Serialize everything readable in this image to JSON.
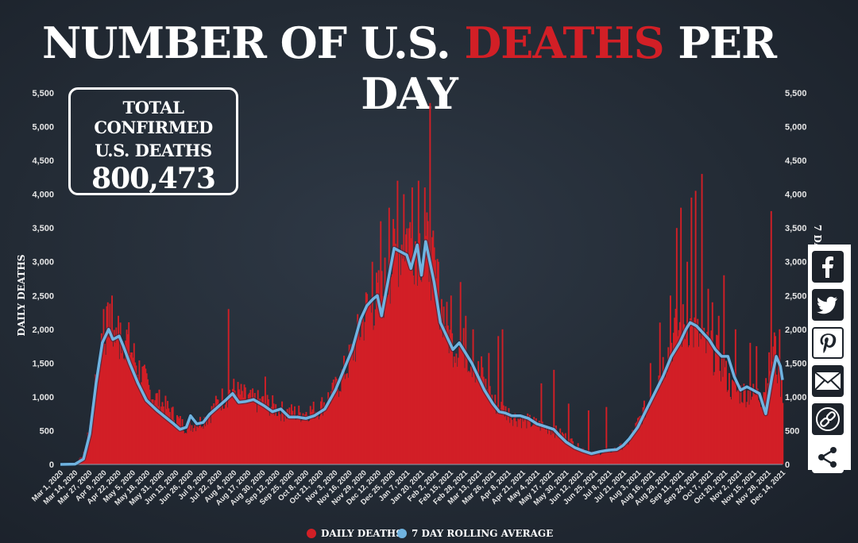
{
  "title": {
    "part1": "NUMBER OF U.S.",
    "highlight": "DEATHS",
    "part2": "PER DAY"
  },
  "total_box": {
    "line1": "TOTAL CONFIRMED",
    "line2": "U.S. DEATHS",
    "value": "800,473"
  },
  "legend": {
    "daily": "DAILY DEATHS",
    "rolling": "7 DAY ROLLING AVERAGE"
  },
  "share_icons": [
    "facebook-icon",
    "twitter-icon",
    "pinterest-icon",
    "email-icon",
    "link-icon",
    "share-icon"
  ],
  "colors": {
    "background": "#232b35",
    "bars": "#d21f26",
    "line": "#6fb3e0",
    "text": "#ffffff"
  },
  "chart_data": {
    "type": "bar",
    "title": "NUMBER OF U.S. DEATHS PER DAY",
    "ylabel": "DAILY DEATHS",
    "y2label": "7 DAY ROLLING AVERAGE",
    "ylim": [
      0,
      5500
    ],
    "yticks": [
      0,
      500,
      1000,
      1500,
      2000,
      2500,
      3000,
      3500,
      4000,
      4500,
      5000,
      5500
    ],
    "ytick_labels": [
      "0",
      "500",
      "1,000",
      "1,500",
      "2,000",
      "2,500",
      "3,000",
      "3,500",
      "4,000",
      "4,500",
      "5,000",
      "5,500"
    ],
    "x_range": [
      "Mar 1, 2020",
      "Dec 14, 2021"
    ],
    "xtick_labels": [
      "Mar 1, 2020",
      "Mar 14, 2020",
      "Mar 27, 2020",
      "Apr 9, 2020",
      "Apr 22, 2020",
      "May 5, 2020",
      "May 18, 2020",
      "May 31, 2020",
      "Jun 13, 2020",
      "Jun 26, 2020",
      "Jul 9, 2020",
      "Jul 22, 2020",
      "Aug 4, 2020",
      "Aug 17, 2020",
      "Aug 30, 2020",
      "Sep 12, 2020",
      "Sep 25, 2020",
      "Oct 8, 2020",
      "Oct 21, 2020",
      "Nov 3, 2020",
      "Nov 16, 2020",
      "Nov 29, 2020",
      "Dec 12, 2020",
      "Dec 25, 2020",
      "Jan 7, 2021",
      "Jan 20, 2021",
      "Feb 2, 2021",
      "Feb 15, 2021",
      "Feb 28, 2021",
      "Mar 13, 2021",
      "Mar 26, 2021",
      "Apr 8, 2021",
      "Apr 21, 2021",
      "May 4, 2021",
      "May 17, 2021",
      "May 30, 2021",
      "Jun 12, 2021",
      "Jun 25, 2021",
      "Jul 8, 2021",
      "Jul 21, 2021",
      "Aug 3, 2021",
      "Aug 16, 2021",
      "Aug 29, 2021",
      "Sep 11, 2021",
      "Sep 24, 2021",
      "Oct 7, 2021",
      "Oct 20, 2021",
      "Nov 2, 2021",
      "Nov 15, 2021",
      "Nov 28, 2021",
      "Dec 14, 2021"
    ],
    "series": [
      {
        "name": "DAILY DEATHS",
        "type": "bar",
        "keypoints": [
          [
            0,
            0
          ],
          [
            14,
            5
          ],
          [
            24,
            200
          ],
          [
            32,
            1000
          ],
          [
            38,
            1700
          ],
          [
            46,
            2100
          ],
          [
            54,
            1800
          ],
          [
            62,
            1900
          ],
          [
            72,
            1500
          ],
          [
            86,
            1050
          ],
          [
            100,
            850
          ],
          [
            118,
            560
          ],
          [
            130,
            600
          ],
          [
            140,
            700
          ],
          [
            152,
            950
          ],
          [
            164,
            1100
          ],
          [
            180,
            950
          ],
          [
            196,
            900
          ],
          [
            212,
            780
          ],
          [
            228,
            750
          ],
          [
            246,
            820
          ],
          [
            262,
            1100
          ],
          [
            276,
            1550
          ],
          [
            292,
            2300
          ],
          [
            306,
            2500
          ],
          [
            318,
            3100
          ],
          [
            330,
            3400
          ],
          [
            340,
            3300
          ],
          [
            352,
            3100
          ],
          [
            362,
            2400
          ],
          [
            372,
            1800
          ],
          [
            386,
            1700
          ],
          [
            400,
            1300
          ],
          [
            414,
            900
          ],
          [
            432,
            700
          ],
          [
            452,
            600
          ],
          [
            466,
            530
          ],
          [
            480,
            420
          ],
          [
            494,
            250
          ],
          [
            510,
            160
          ],
          [
            524,
            200
          ],
          [
            540,
            300
          ],
          [
            558,
            850
          ],
          [
            572,
            1400
          ],
          [
            586,
            1950
          ],
          [
            598,
            2100
          ],
          [
            612,
            1750
          ],
          [
            626,
            1600
          ],
          [
            640,
            1100
          ],
          [
            654,
            1050
          ],
          [
            668,
            1000
          ],
          [
            680,
            1700
          ],
          [
            684,
            1300
          ],
          [
            688,
            1100
          ]
        ],
        "spikes": [
          [
            41,
            2300
          ],
          [
            45,
            2400
          ],
          [
            49,
            2500
          ],
          [
            55,
            2200
          ],
          [
            57,
            2100
          ],
          [
            160,
            2300
          ],
          [
            195,
            1300
          ],
          [
            297,
            3000
          ],
          [
            305,
            3600
          ],
          [
            313,
            3800
          ],
          [
            321,
            4200
          ],
          [
            327,
            4000
          ],
          [
            335,
            4100
          ],
          [
            341,
            4200
          ],
          [
            347,
            4100
          ],
          [
            352,
            5350
          ],
          [
            360,
            3000
          ],
          [
            372,
            2500
          ],
          [
            381,
            2700
          ],
          [
            386,
            2200
          ],
          [
            393,
            2000
          ],
          [
            401,
            1600
          ],
          [
            408,
            1650
          ],
          [
            417,
            1900
          ],
          [
            421,
            2000
          ],
          [
            458,
            1200
          ],
          [
            470,
            1400
          ],
          [
            484,
            900
          ],
          [
            503,
            800
          ],
          [
            520,
            850
          ],
          [
            562,
            1500
          ],
          [
            571,
            2100
          ],
          [
            581,
            2500
          ],
          [
            587,
            3500
          ],
          [
            591,
            3800
          ],
          [
            597,
            3000
          ],
          [
            601,
            3950
          ],
          [
            605,
            4050
          ],
          [
            611,
            4300
          ],
          [
            617,
            2600
          ],
          [
            621,
            2400
          ],
          [
            627,
            2200
          ],
          [
            632,
            2800
          ],
          [
            643,
            2000
          ],
          [
            657,
            1800
          ],
          [
            663,
            1750
          ],
          [
            677,
            3750
          ],
          [
            681,
            1900
          ],
          [
            685,
            2000
          ]
        ]
      },
      {
        "name": "7 DAY ROLLING AVERAGE",
        "type": "line",
        "keypoints": [
          [
            0,
            0
          ],
          [
            14,
            5
          ],
          [
            22,
            80
          ],
          [
            28,
            450
          ],
          [
            34,
            1200
          ],
          [
            40,
            1800
          ],
          [
            46,
            2000
          ],
          [
            50,
            1850
          ],
          [
            56,
            1900
          ],
          [
            60,
            1750
          ],
          [
            66,
            1500
          ],
          [
            74,
            1200
          ],
          [
            82,
            950
          ],
          [
            92,
            800
          ],
          [
            100,
            700
          ],
          [
            108,
            600
          ],
          [
            114,
            520
          ],
          [
            120,
            550
          ],
          [
            124,
            720
          ],
          [
            130,
            600
          ],
          [
            136,
            620
          ],
          [
            142,
            740
          ],
          [
            150,
            850
          ],
          [
            158,
            960
          ],
          [
            164,
            1050
          ],
          [
            170,
            920
          ],
          [
            176,
            930
          ],
          [
            184,
            960
          ],
          [
            194,
            870
          ],
          [
            202,
            780
          ],
          [
            210,
            820
          ],
          [
            218,
            700
          ],
          [
            226,
            700
          ],
          [
            234,
            680
          ],
          [
            242,
            720
          ],
          [
            252,
            820
          ],
          [
            262,
            1100
          ],
          [
            270,
            1400
          ],
          [
            278,
            1700
          ],
          [
            286,
            2150
          ],
          [
            292,
            2350
          ],
          [
            298,
            2450
          ],
          [
            302,
            2500
          ],
          [
            306,
            2200
          ],
          [
            312,
            2700
          ],
          [
            318,
            3200
          ],
          [
            324,
            3150
          ],
          [
            330,
            3100
          ],
          [
            334,
            2900
          ],
          [
            340,
            3250
          ],
          [
            344,
            2800
          ],
          [
            348,
            3300
          ],
          [
            352,
            3000
          ],
          [
            356,
            2700
          ],
          [
            362,
            2100
          ],
          [
            368,
            1900
          ],
          [
            374,
            1700
          ],
          [
            380,
            1800
          ],
          [
            386,
            1650
          ],
          [
            392,
            1500
          ],
          [
            398,
            1300
          ],
          [
            404,
            1100
          ],
          [
            412,
            900
          ],
          [
            418,
            780
          ],
          [
            424,
            760
          ],
          [
            430,
            720
          ],
          [
            438,
            720
          ],
          [
            446,
            680
          ],
          [
            454,
            600
          ],
          [
            462,
            560
          ],
          [
            470,
            520
          ],
          [
            476,
            420
          ],
          [
            482,
            330
          ],
          [
            490,
            250
          ],
          [
            498,
            200
          ],
          [
            506,
            160
          ],
          [
            514,
            190
          ],
          [
            522,
            210
          ],
          [
            530,
            220
          ],
          [
            536,
            280
          ],
          [
            542,
            380
          ],
          [
            550,
            550
          ],
          [
            558,
            800
          ],
          [
            566,
            1050
          ],
          [
            574,
            1300
          ],
          [
            582,
            1600
          ],
          [
            590,
            1800
          ],
          [
            596,
            2000
          ],
          [
            600,
            2100
          ],
          [
            606,
            2050
          ],
          [
            612,
            1950
          ],
          [
            618,
            1850
          ],
          [
            624,
            1700
          ],
          [
            630,
            1600
          ],
          [
            636,
            1600
          ],
          [
            642,
            1300
          ],
          [
            648,
            1100
          ],
          [
            654,
            1150
          ],
          [
            660,
            1100
          ],
          [
            666,
            1050
          ],
          [
            672,
            750
          ],
          [
            678,
            1300
          ],
          [
            682,
            1600
          ],
          [
            686,
            1450
          ],
          [
            688,
            1250
          ]
        ]
      }
    ]
  }
}
